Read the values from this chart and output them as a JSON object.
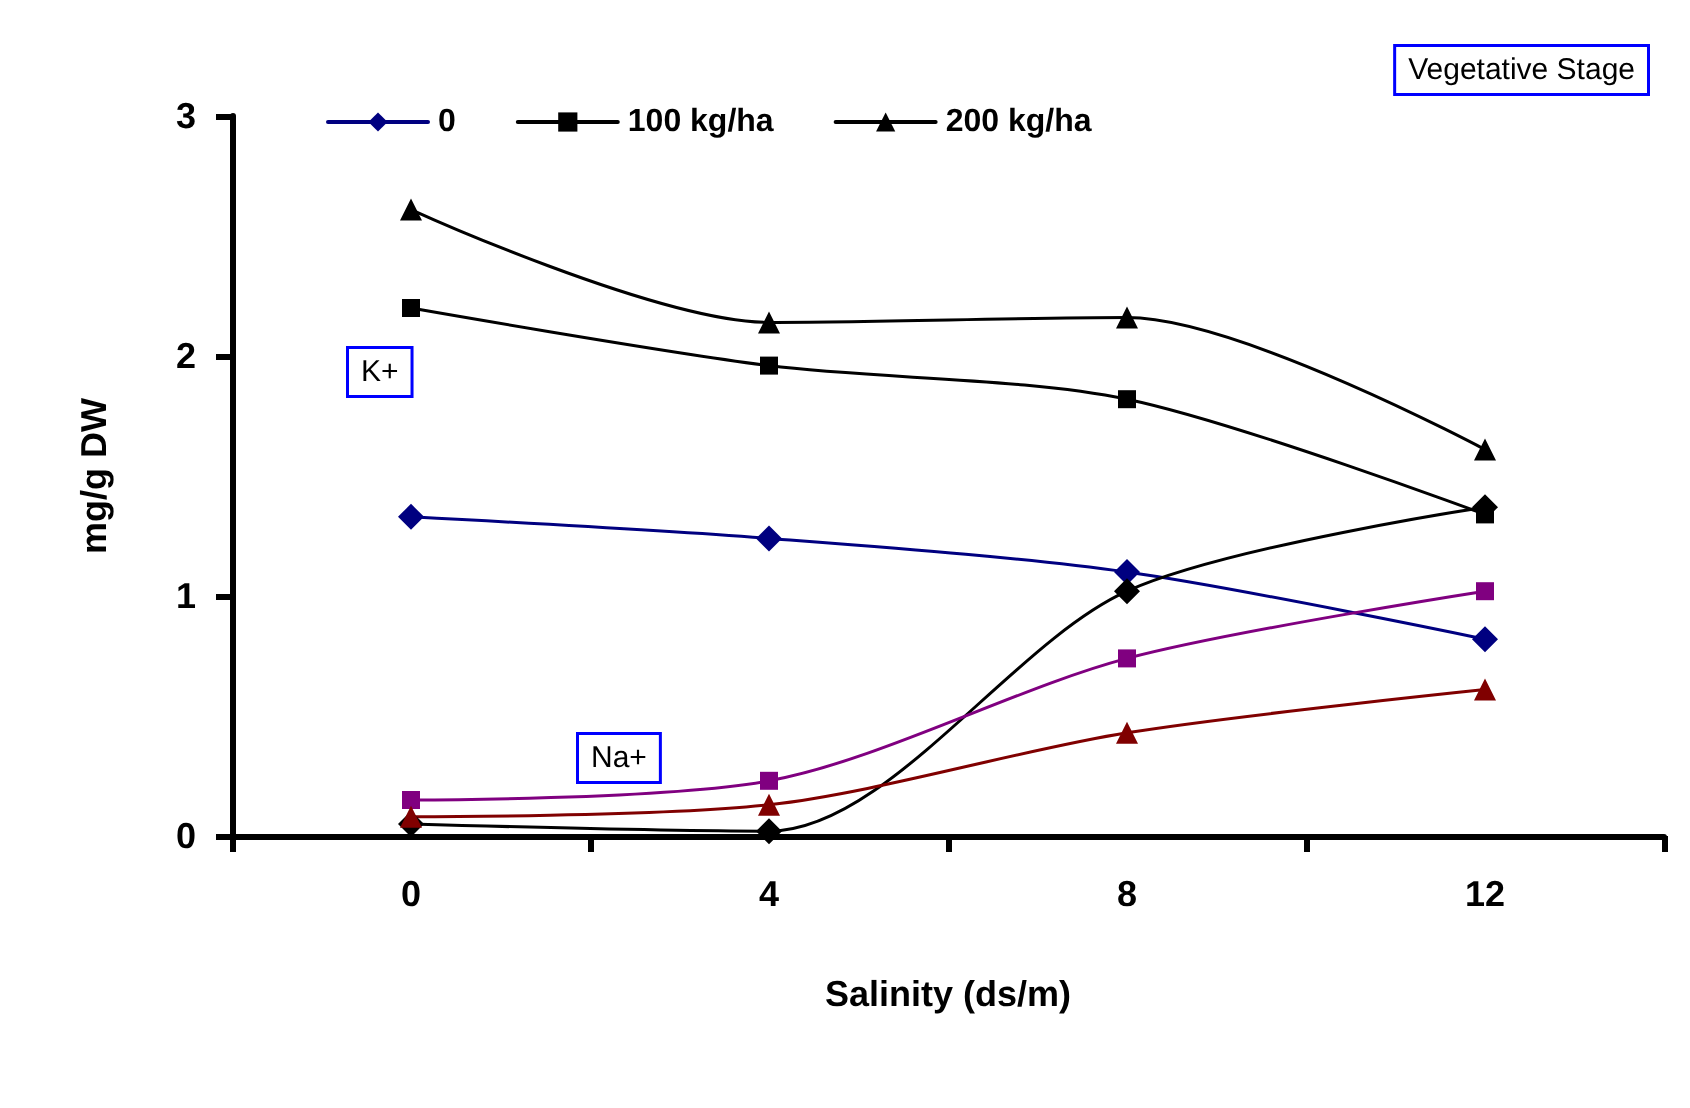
{
  "chart_data": {
    "type": "line",
    "xlabel": "Salinity (ds/m)",
    "ylabel": "mg/g DW",
    "categories": [
      "0",
      "4",
      "8",
      "12"
    ],
    "series": [
      {
        "name": "0",
        "color": "#000080",
        "marker": "diamond",
        "values": [
          1.33,
          1.24,
          1.1,
          0.82
        ]
      },
      {
        "name": "100 kg/ha",
        "color": "#000000",
        "marker": "square",
        "values": [
          2.2,
          1.96,
          1.82,
          1.34
        ]
      },
      {
        "name": "200 kg/ha",
        "color": "#000000",
        "marker": "triangle",
        "values": [
          2.61,
          2.14,
          2.16,
          1.61
        ]
      },
      {
        "color": "#000000",
        "marker": "diamond",
        "values": [
          0.05,
          0.02,
          1.02,
          1.37
        ]
      },
      {
        "color": "#800080",
        "marker": "square",
        "values": [
          0.15,
          0.23,
          0.74,
          1.02
        ]
      },
      {
        "color": "#800000",
        "marker": "triangle",
        "values": [
          0.08,
          0.13,
          0.43,
          0.61
        ]
      }
    ],
    "ylim": [
      0,
      3
    ],
    "yticks": [
      0,
      1,
      2,
      3
    ],
    "grid": false,
    "legend": "top",
    "annotations": [
      "Vegetative Stage",
      "K+",
      "Na+"
    ]
  }
}
